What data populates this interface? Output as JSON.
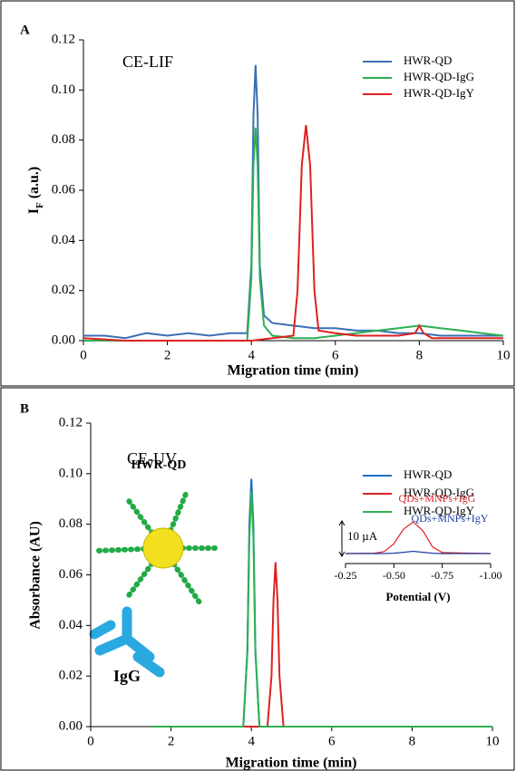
{
  "panel_labels": [
    "A",
    "B"
  ],
  "chart_data": [
    {
      "type": "line",
      "title": "CE-LIF",
      "xlabel": "Migration time (min)",
      "ylabel": [
        "I",
        "F",
        " (a.u.)"
      ],
      "xlim": [
        0,
        10
      ],
      "xticks": [
        0,
        2,
        4,
        6,
        8,
        10
      ],
      "ylim": [
        0,
        0.12
      ],
      "yticks": [
        {
          "value": 0,
          "label": "0.00"
        },
        0.02,
        0.04,
        0.06,
        0.08,
        {
          "value": 0.1,
          "label": "0.10"
        },
        0.12
      ],
      "series": [
        {
          "name": "HWR-QD",
          "color": "#3a6fb5",
          "x": [
            0,
            0.5,
            1,
            1.5,
            2,
            2.5,
            3,
            3.5,
            3.9,
            4.0,
            4.05,
            4.1,
            4.15,
            4.2,
            4.3,
            4.5,
            5,
            5.5,
            6,
            6.5,
            7,
            7.5,
            8,
            8.5,
            9,
            9.5,
            10
          ],
          "values": [
            0.002,
            0.002,
            0.001,
            0.003,
            0.002,
            0.003,
            0.002,
            0.003,
            0.003,
            0.03,
            0.09,
            0.11,
            0.09,
            0.03,
            0.01,
            0.007,
            0.006,
            0.005,
            0.005,
            0.004,
            0.004,
            0.003,
            0.003,
            0.002,
            0.002,
            0.002,
            0.002
          ]
        },
        {
          "name": "HWR-QD-IgG",
          "color": "#2eb050",
          "x": [
            0,
            1,
            2,
            3,
            3.9,
            4.0,
            4.05,
            4.1,
            4.15,
            4.2,
            4.3,
            4.5,
            5,
            5.5,
            6,
            6.5,
            7,
            7.5,
            8,
            8.5,
            9,
            9.5,
            10
          ],
          "values": [
            0,
            0,
            0,
            0,
            0,
            0.025,
            0.07,
            0.085,
            0.07,
            0.025,
            0.006,
            0.002,
            0.001,
            0.001,
            0.002,
            0.003,
            0.004,
            0.005,
            0.006,
            0.005,
            0.004,
            0.003,
            0.002
          ]
        },
        {
          "name": "HWR-QD-IgY",
          "color": "#e02020",
          "x": [
            0,
            1,
            2,
            3,
            4,
            4.5,
            5,
            5.1,
            5.2,
            5.3,
            5.4,
            5.5,
            5.6,
            6,
            6.5,
            7,
            7.5,
            7.9,
            8.0,
            8.1,
            8.3,
            9,
            10
          ],
          "values": [
            0.001,
            0,
            0,
            0,
            0,
            0.001,
            0.002,
            0.02,
            0.07,
            0.086,
            0.07,
            0.02,
            0.004,
            0.003,
            0.002,
            0.002,
            0.002,
            0.003,
            0.006,
            0.003,
            0.001,
            0.001,
            0.001
          ]
        }
      ]
    },
    {
      "type": "line",
      "title": "CE-UV",
      "xlabel": "Migration time (min)",
      "ylabel": "Absorbance (AU)",
      "annotations": [
        "HWR-QD",
        "IgG"
      ],
      "xlim": [
        0,
        10
      ],
      "xticks": [
        0,
        2,
        4,
        6,
        8,
        10
      ],
      "ylim": [
        0,
        0.12
      ],
      "yticks": [
        {
          "value": 0,
          "label": "0.00"
        },
        0.02,
        0.04,
        0.06,
        0.08,
        {
          "value": 0.1,
          "label": "0.10"
        },
        0.12
      ],
      "series": [
        {
          "name": "HWR-QD",
          "color": "#1f6fc0",
          "x": [
            1.5,
            3.8,
            3.9,
            3.95,
            4.0,
            4.05,
            4.1,
            4.2,
            10
          ],
          "values": [
            0,
            0,
            0.03,
            0.08,
            0.098,
            0.08,
            0.03,
            0,
            0
          ]
        },
        {
          "name": "HWR-QD-IgG",
          "color": "#e02020",
          "x": [
            1.5,
            4.4,
            4.5,
            4.55,
            4.6,
            4.65,
            4.7,
            4.8,
            10
          ],
          "values": [
            0,
            0,
            0.02,
            0.05,
            0.065,
            0.05,
            0.02,
            0,
            0
          ]
        },
        {
          "name": "HWR-QD-IgY",
          "color": "#2eb050",
          "x": [
            1.5,
            3.8,
            3.9,
            3.95,
            4.0,
            4.05,
            4.1,
            4.2,
            10
          ],
          "values": [
            0,
            0,
            0.03,
            0.075,
            0.093,
            0.075,
            0.03,
            0,
            0
          ]
        }
      ]
    },
    {
      "type": "line",
      "xlabel": "Potential (V)",
      "xlim": [
        -0.25,
        -1
      ],
      "xticks": [
        -0.25,
        {
          "value": -0.5,
          "label": "-0.50"
        },
        {
          "value": -0.75,
          "label": "-0.75"
        },
        {
          "value": -1,
          "label": "-1.00"
        }
      ],
      "ylim": [
        0,
        20
      ],
      "scale_bar": {
        "value": 10,
        "label": "10 µA"
      },
      "series": [
        {
          "name": "QDs+MNPs+IgG",
          "color": "#e02020",
          "x": [
            -0.25,
            -0.4,
            -0.45,
            -0.5,
            -0.55,
            -0.6,
            -0.65,
            -0.7,
            -0.75,
            -1
          ],
          "values": [
            0,
            0.1,
            0.6,
            3,
            7.5,
            9.7,
            7,
            2,
            0.3,
            0
          ]
        },
        {
          "name": "QDs+MNPs+IgY",
          "color": "#1f3fa0",
          "x": [
            -0.25,
            -0.4,
            -0.45,
            -0.5,
            -0.55,
            -0.6,
            -0.65,
            -0.7,
            -0.75,
            -1
          ],
          "values": [
            0,
            0,
            0,
            0.1,
            0.4,
            0.7,
            0.4,
            0.1,
            0,
            0
          ]
        }
      ]
    }
  ]
}
